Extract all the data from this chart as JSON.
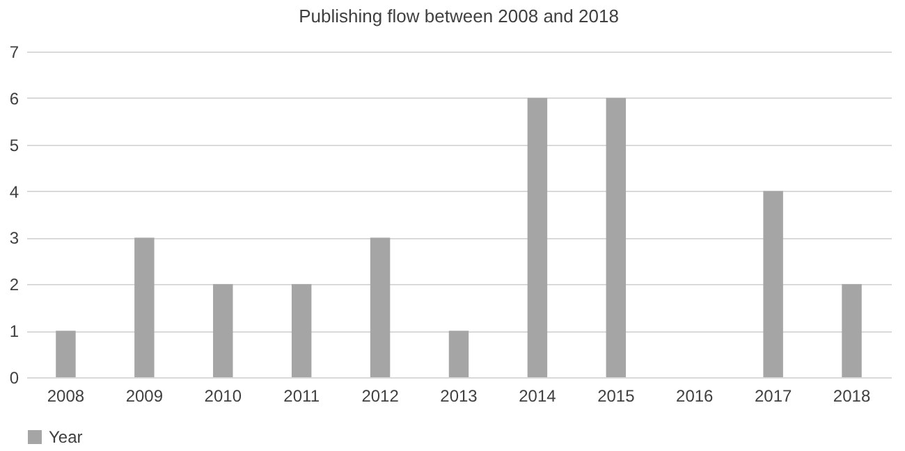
{
  "chart_data": {
    "type": "bar",
    "title": "Publishing flow between 2008 and 2018",
    "categories": [
      "2008",
      "2009",
      "2010",
      "2011",
      "2012",
      "2013",
      "2014",
      "2015",
      "2016",
      "2017",
      "2018"
    ],
    "series": [
      {
        "name": "Year",
        "color": "#a5a5a5",
        "values": [
          1,
          3,
          2,
          2,
          3,
          1,
          6,
          6,
          0,
          4,
          2
        ]
      }
    ],
    "ylim": [
      0,
      7
    ],
    "yticks": [
      0,
      1,
      2,
      3,
      4,
      5,
      6,
      7
    ],
    "grid": "y",
    "legend": "bottom"
  }
}
